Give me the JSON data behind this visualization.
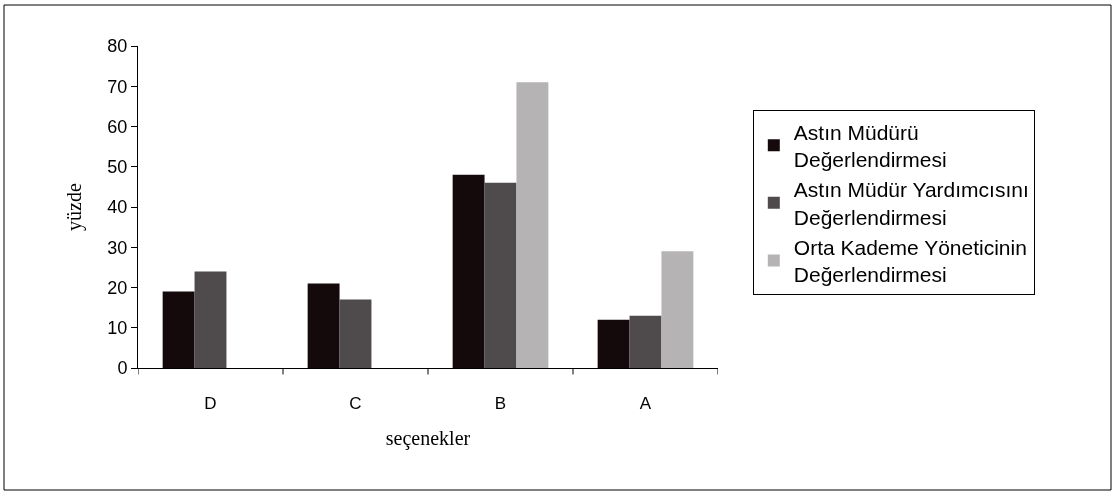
{
  "chart_data": {
    "type": "bar",
    "xlabel": "seçenekler",
    "ylabel": "yüzde",
    "categories": [
      "D",
      "C",
      "B",
      "A"
    ],
    "series": [
      {
        "name": "Astın Müdürü Değerlendirmesi",
        "color": "#140a0c",
        "values": [
          19,
          21,
          48,
          12
        ]
      },
      {
        "name": "Astın Müdür Yardımcısını Değerlendirmesi",
        "color": "#4f4a4c",
        "values": [
          24,
          17,
          46,
          13
        ]
      },
      {
        "name": "Orta Kademe Yöneticinin Değerlendirmesi",
        "color": "#b5b3b4",
        "values": [
          null,
          null,
          71,
          29
        ]
      }
    ],
    "ylim": [
      0,
      80
    ],
    "yticks": [
      0,
      10,
      20,
      30,
      40,
      50,
      60,
      70,
      80
    ],
    "legend": "right"
  }
}
